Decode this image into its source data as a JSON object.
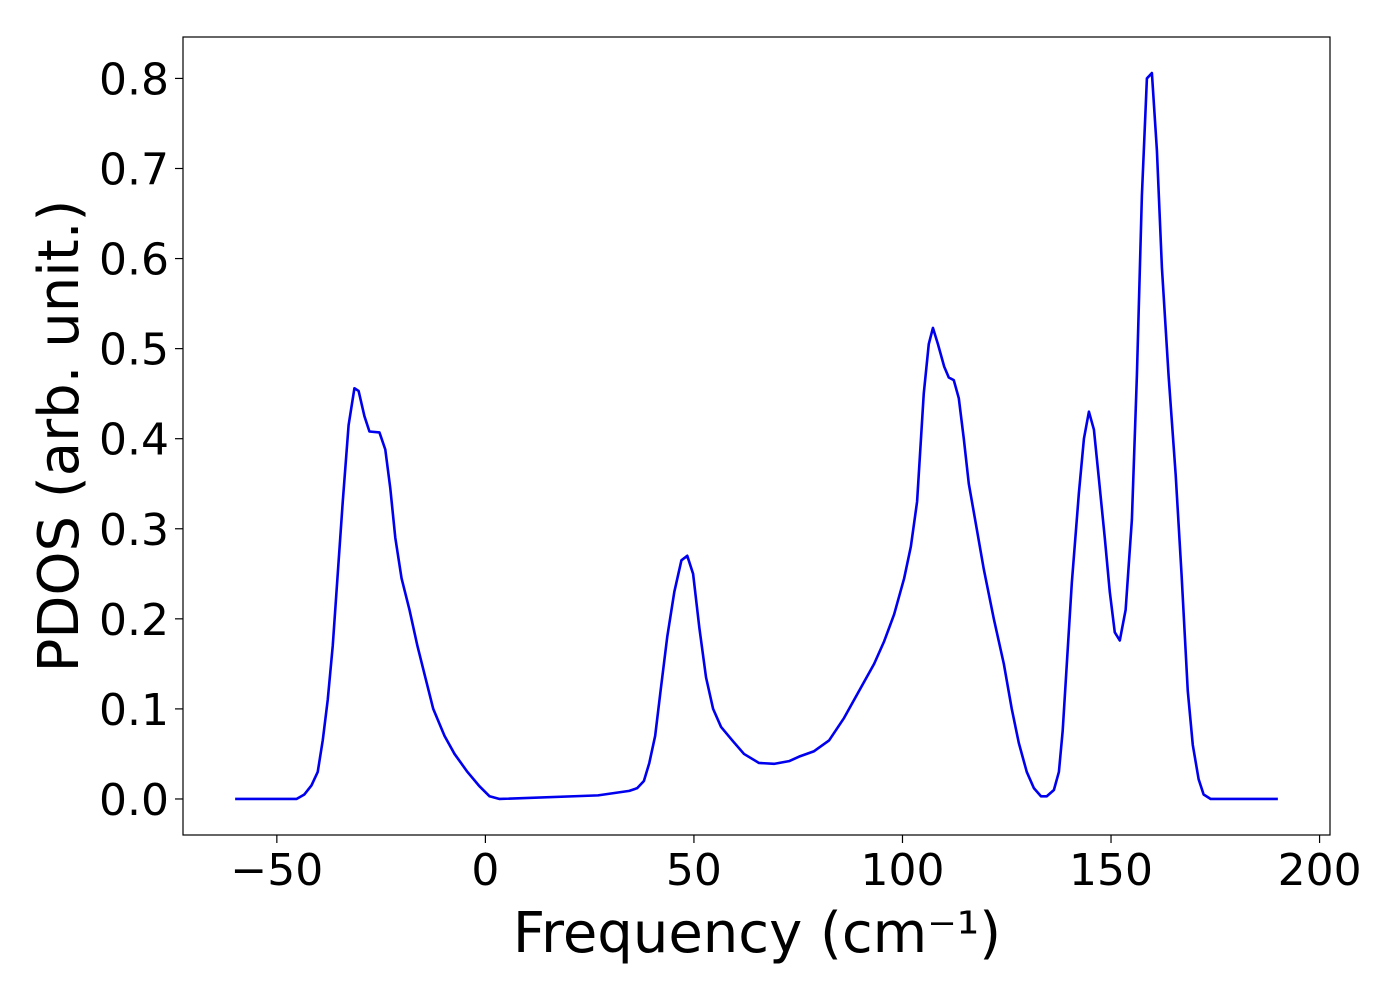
{
  "chart_data": {
    "type": "line",
    "xlabel": "Frequency (cm⁻¹)",
    "ylabel": "PDOS (arb. unit.)",
    "xlim": [
      -72.5,
      202.5
    ],
    "ylim": [
      -0.04,
      0.846
    ],
    "xticks": [
      {
        "value": -50,
        "label": "−50"
      },
      0,
      50,
      100,
      150,
      200
    ],
    "yticks": [
      {
        "value": 0,
        "label": "0.0"
      },
      0.1,
      0.2,
      0.3,
      0.4,
      0.5,
      0.6,
      0.7,
      0.8
    ],
    "grid": false,
    "x": [
      -60,
      -45.3,
      -43.4,
      -41.7,
      -40.2,
      -39,
      -37.8,
      -36.6,
      -35.4,
      -34.2,
      -32.8,
      -31.4,
      -30.4,
      -29,
      -27.8,
      -25.4,
      -24,
      -22.8,
      -21.6,
      -20.1,
      -18.2,
      -16.3,
      -14.4,
      -12.5,
      -9.8,
      -7.4,
      -4.3,
      -1.4,
      1,
      3.4,
      27,
      34.5,
      36.4,
      38,
      39.3,
      40.7,
      42,
      43.6,
      45.3,
      47,
      48.4,
      49.8,
      51.3,
      52.9,
      54.6,
      56.5,
      59.2,
      62,
      65.6,
      69.2,
      72.8,
      75.2,
      78.8,
      82.4,
      86,
      89.6,
      93.2,
      95.6,
      98,
      100.4,
      102,
      103.5,
      105.1,
      106.3,
      107.3,
      108.5,
      110,
      111.1,
      112.3,
      113.5,
      114.7,
      115.9,
      117.8,
      119.5,
      121.9,
      124.3,
      126.2,
      127.9,
      129.8,
      131.5,
      133.2,
      134.6,
      136.3,
      137.5,
      138.4,
      139.4,
      140.6,
      142.3,
      143.5,
      144.7,
      145.9,
      147.1,
      148.5,
      149.7,
      150.9,
      152.1,
      153.5,
      155,
      156.2,
      157.4,
      158.6,
      159.8,
      161,
      162.2,
      163.8,
      165.5,
      166.9,
      168.4,
      169.6,
      171,
      172.2,
      173.9,
      190
    ],
    "series": [
      {
        "name": "PDOS",
        "color": "#0000ee",
        "values": [
          0,
          0,
          0.005,
          0.015,
          0.03,
          0.065,
          0.11,
          0.17,
          0.25,
          0.33,
          0.415,
          0.456,
          0.453,
          0.425,
          0.408,
          0.407,
          0.388,
          0.345,
          0.29,
          0.245,
          0.21,
          0.17,
          0.135,
          0.1,
          0.07,
          0.05,
          0.03,
          0.014,
          0.003,
          0,
          0.004,
          0.009,
          0.012,
          0.02,
          0.04,
          0.07,
          0.12,
          0.18,
          0.23,
          0.265,
          0.27,
          0.25,
          0.19,
          0.135,
          0.1,
          0.08,
          0.065,
          0.05,
          0.04,
          0.039,
          0.042,
          0.047,
          0.053,
          0.065,
          0.09,
          0.12,
          0.15,
          0.175,
          0.205,
          0.245,
          0.28,
          0.33,
          0.45,
          0.505,
          0.523,
          0.505,
          0.48,
          0.468,
          0.465,
          0.445,
          0.4,
          0.35,
          0.3,
          0.255,
          0.2,
          0.15,
          0.1,
          0.062,
          0.03,
          0.012,
          0.003,
          0.003,
          0.01,
          0.03,
          0.075,
          0.15,
          0.24,
          0.34,
          0.4,
          0.43,
          0.41,
          0.355,
          0.29,
          0.23,
          0.185,
          0.176,
          0.21,
          0.31,
          0.47,
          0.67,
          0.8,
          0.806,
          0.72,
          0.59,
          0.47,
          0.36,
          0.25,
          0.12,
          0.06,
          0.022,
          0.005,
          0,
          0
        ]
      }
    ]
  }
}
